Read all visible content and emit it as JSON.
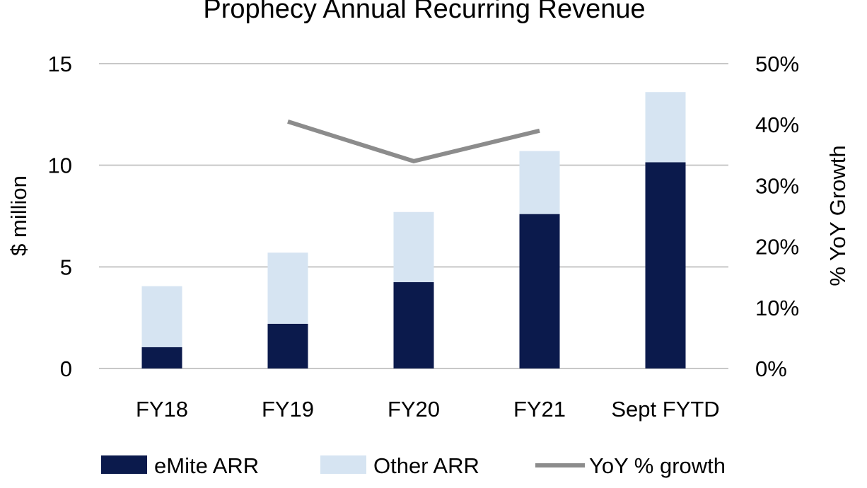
{
  "chart_data": {
    "type": "bar",
    "stacked": true,
    "title": "Prophecy Annual Recurring Revenue",
    "ylabel": "$ million",
    "y2label": "% YoY Growth",
    "categories": [
      "FY18",
      "FY19",
      "FY20",
      "FY21",
      "Sept FYTD"
    ],
    "ylim": [
      0,
      15
    ],
    "yticks": [
      0,
      5,
      10,
      15
    ],
    "y2lim": [
      0,
      50
    ],
    "y2ticks": [
      "0%",
      "10%",
      "20%",
      "30%",
      "40%",
      "50%"
    ],
    "grid": true,
    "legend_position": "bottom",
    "series": [
      {
        "name": "eMite ARR",
        "type": "bar",
        "axis": "left",
        "color": "#0B1A4C",
        "values": [
          1.05,
          2.2,
          4.25,
          7.6,
          10.15
        ]
      },
      {
        "name": "Other ARR",
        "type": "bar",
        "axis": "left",
        "color": "#D6E4F2",
        "values": [
          3.0,
          3.5,
          3.45,
          3.1,
          3.45
        ]
      },
      {
        "name": "YoY % growth",
        "type": "line",
        "axis": "right",
        "color": "#8C8C8C",
        "values": [
          null,
          40.5,
          34,
          39,
          null
        ]
      }
    ]
  }
}
